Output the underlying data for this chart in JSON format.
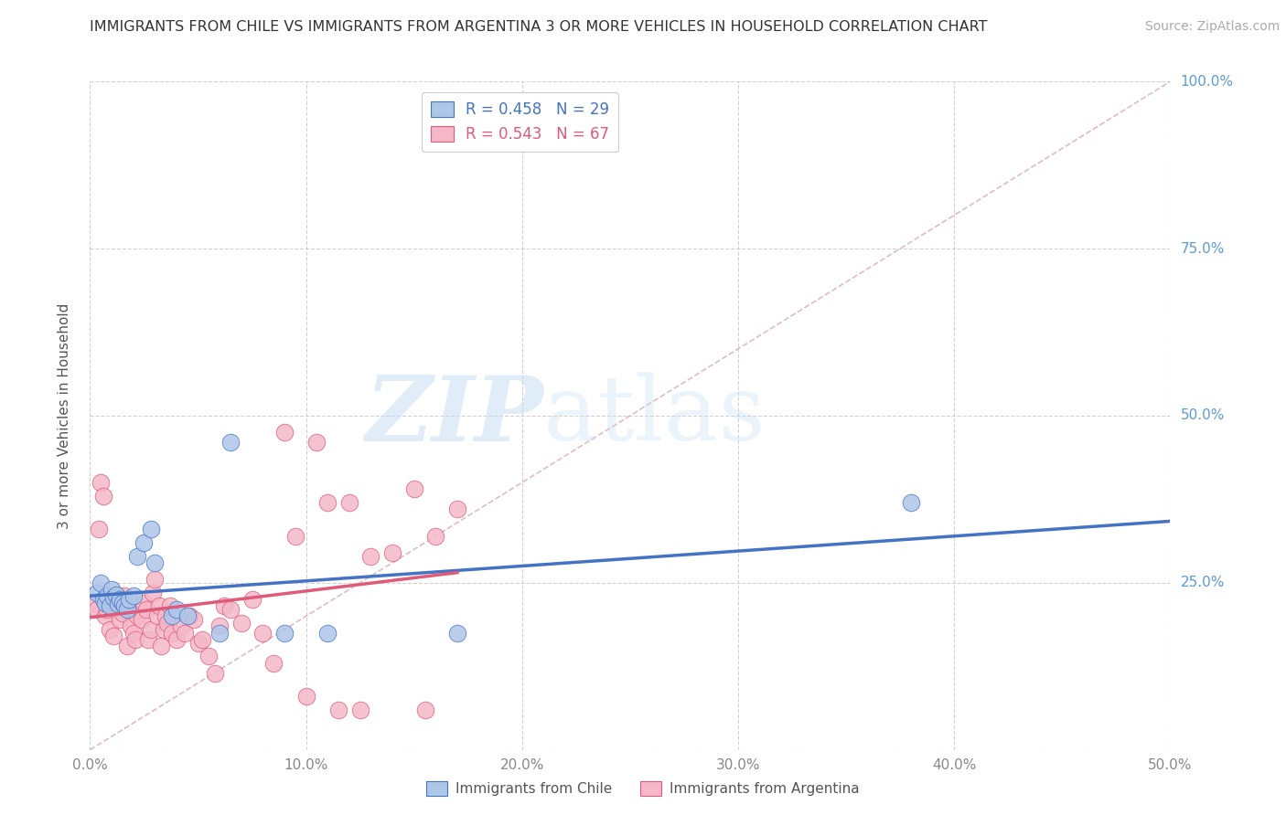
{
  "title": "IMMIGRANTS FROM CHILE VS IMMIGRANTS FROM ARGENTINA 3 OR MORE VEHICLES IN HOUSEHOLD CORRELATION CHART",
  "source": "Source: ZipAtlas.com",
  "ylabel": "3 or more Vehicles in Household",
  "xlim": [
    0.0,
    0.5
  ],
  "ylim": [
    0.0,
    1.0
  ],
  "xticks": [
    0.0,
    0.1,
    0.2,
    0.3,
    0.4,
    0.5
  ],
  "yticks": [
    0.0,
    0.25,
    0.5,
    0.75,
    1.0
  ],
  "xtick_labels": [
    "0.0%",
    "10.0%",
    "20.0%",
    "30.0%",
    "40.0%",
    "50.0%"
  ],
  "ytick_labels": [
    "",
    "25.0%",
    "50.0%",
    "75.0%",
    "100.0%"
  ],
  "chile_color": "#aec6e8",
  "argentina_color": "#f4b8c8",
  "chile_R": 0.458,
  "chile_N": 29,
  "argentina_R": 0.543,
  "argentina_N": 67,
  "chile_trend_color": "#4472c4",
  "argentina_trend_color": "#e05a7a",
  "diagonal_color": "#d4a0a8",
  "watermark_zip": "ZIP",
  "watermark_atlas": "atlas",
  "chile_x": [
    0.003,
    0.005,
    0.006,
    0.007,
    0.008,
    0.009,
    0.01,
    0.011,
    0.012,
    0.013,
    0.014,
    0.015,
    0.016,
    0.017,
    0.018,
    0.02,
    0.022,
    0.025,
    0.028,
    0.03,
    0.038,
    0.04,
    0.045,
    0.06,
    0.065,
    0.09,
    0.11,
    0.17,
    0.38
  ],
  "chile_y": [
    0.235,
    0.25,
    0.225,
    0.22,
    0.23,
    0.215,
    0.24,
    0.228,
    0.232,
    0.218,
    0.225,
    0.22,
    0.215,
    0.21,
    0.225,
    0.23,
    0.29,
    0.31,
    0.33,
    0.28,
    0.2,
    0.21,
    0.2,
    0.175,
    0.46,
    0.175,
    0.175,
    0.175,
    0.37
  ],
  "argentina_x": [
    0.002,
    0.003,
    0.004,
    0.005,
    0.006,
    0.007,
    0.008,
    0.009,
    0.01,
    0.011,
    0.012,
    0.013,
    0.014,
    0.015,
    0.016,
    0.017,
    0.018,
    0.019,
    0.02,
    0.021,
    0.022,
    0.023,
    0.024,
    0.025,
    0.026,
    0.027,
    0.028,
    0.029,
    0.03,
    0.031,
    0.032,
    0.033,
    0.034,
    0.035,
    0.036,
    0.037,
    0.038,
    0.04,
    0.042,
    0.044,
    0.046,
    0.048,
    0.05,
    0.052,
    0.055,
    0.058,
    0.06,
    0.062,
    0.065,
    0.07,
    0.075,
    0.08,
    0.085,
    0.09,
    0.095,
    0.1,
    0.105,
    0.11,
    0.115,
    0.12,
    0.125,
    0.13,
    0.14,
    0.15,
    0.155,
    0.16,
    0.17
  ],
  "argentina_y": [
    0.22,
    0.21,
    0.33,
    0.4,
    0.38,
    0.2,
    0.21,
    0.18,
    0.215,
    0.17,
    0.22,
    0.23,
    0.195,
    0.205,
    0.23,
    0.155,
    0.215,
    0.185,
    0.175,
    0.165,
    0.2,
    0.21,
    0.195,
    0.22,
    0.21,
    0.165,
    0.18,
    0.235,
    0.255,
    0.2,
    0.215,
    0.155,
    0.18,
    0.2,
    0.19,
    0.215,
    0.175,
    0.165,
    0.185,
    0.175,
    0.2,
    0.195,
    0.16,
    0.165,
    0.14,
    0.115,
    0.185,
    0.215,
    0.21,
    0.19,
    0.225,
    0.175,
    0.13,
    0.475,
    0.32,
    0.08,
    0.46,
    0.37,
    0.06,
    0.37,
    0.06,
    0.29,
    0.295,
    0.39,
    0.06,
    0.32,
    0.36
  ]
}
